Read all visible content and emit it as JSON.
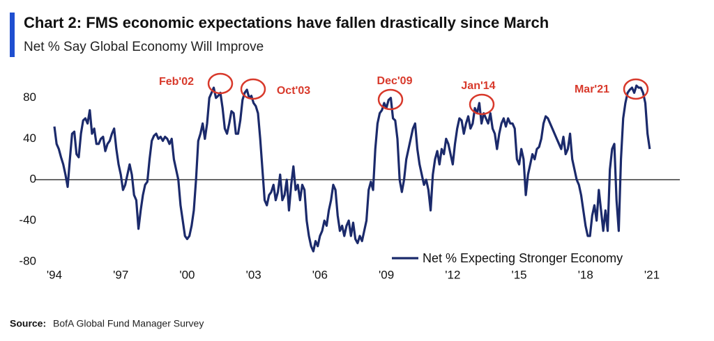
{
  "chart_data": {
    "type": "line",
    "title": "Chart 2: FMS economic expectations have fallen drastically since March",
    "subtitle": "Net % Say Global Economy Will Improve",
    "source_label": "Source:",
    "source": "BofA Global Fund Manager Survey",
    "annotations": [
      "Feb'02",
      "Oct'03",
      "Dec'09",
      "Jan'14",
      "Mar'21"
    ],
    "annotation_color": "#d8392b",
    "legend": "lower right",
    "grid": false,
    "xlim": [
      1994,
      2021
    ],
    "xticks": [
      {
        "value": 1994,
        "label": "'94"
      },
      {
        "value": 1997,
        "label": "'97"
      },
      {
        "value": 2000,
        "label": "'00"
      },
      {
        "value": 2003,
        "label": "'03"
      },
      {
        "value": 2006,
        "label": "'06"
      },
      {
        "value": 2009,
        "label": "'09"
      },
      {
        "value": 2012,
        "label": "'12"
      },
      {
        "value": 2015,
        "label": "'15"
      },
      {
        "value": 2018,
        "label": "'18"
      },
      {
        "value": 2021,
        "label": "'21"
      }
    ],
    "ylim": [
      -90,
      100
    ],
    "yticks": [
      -80,
      -40,
      0,
      40,
      80
    ],
    "x": [
      1994,
      1994.1,
      1994.2,
      1994.3,
      1994.4,
      1994.5,
      1994.6,
      1994.7,
      1994.8,
      1994.9,
      1995,
      1995.1,
      1995.2,
      1995.3,
      1995.4,
      1995.5,
      1995.6,
      1995.7,
      1995.8,
      1995.9,
      1996,
      1996.1,
      1996.2,
      1996.3,
      1996.4,
      1996.5,
      1996.6,
      1996.7,
      1996.8,
      1996.9,
      1997,
      1997.1,
      1997.2,
      1997.3,
      1997.4,
      1997.5,
      1997.6,
      1997.7,
      1997.8,
      1997.9,
      1998,
      1998.1,
      1998.2,
      1998.3,
      1998.4,
      1998.5,
      1998.6,
      1998.7,
      1998.8,
      1998.9,
      1999,
      1999.1,
      1999.2,
      1999.3,
      1999.4,
      1999.5,
      1999.6,
      1999.7,
      1999.8,
      1999.9,
      2000,
      2000.1,
      2000.2,
      2000.3,
      2000.4,
      2000.5,
      2000.6,
      2000.7,
      2000.8,
      2000.9,
      2001,
      2001.1,
      2001.2,
      2001.3,
      2001.4,
      2001.5,
      2001.6,
      2001.7,
      2001.8,
      2001.9,
      2002,
      2002.1,
      2002.2,
      2002.3,
      2002.4,
      2002.5,
      2002.6,
      2002.7,
      2002.8,
      2002.9,
      2003,
      2003.1,
      2003.2,
      2003.3,
      2003.4,
      2003.5,
      2003.6,
      2003.7,
      2003.8,
      2003.9,
      2004,
      2004.1,
      2004.2,
      2004.3,
      2004.4,
      2004.5,
      2004.6,
      2004.7,
      2004.8,
      2004.9,
      2005,
      2005.1,
      2005.2,
      2005.3,
      2005.4,
      2005.5,
      2005.6,
      2005.7,
      2005.8,
      2005.9,
      2006,
      2006.1,
      2006.2,
      2006.3,
      2006.4,
      2006.5,
      2006.6,
      2006.7,
      2006.8,
      2006.9,
      2007,
      2007.1,
      2007.2,
      2007.3,
      2007.4,
      2007.5,
      2007.6,
      2007.7,
      2007.8,
      2007.9,
      2008,
      2008.1,
      2008.2,
      2008.3,
      2008.4,
      2008.5,
      2008.6,
      2008.7,
      2008.8,
      2008.9,
      2009,
      2009.1,
      2009.2,
      2009.3,
      2009.4,
      2009.5,
      2009.6,
      2009.7,
      2009.8,
      2009.9,
      2010,
      2010.1,
      2010.2,
      2010.3,
      2010.4,
      2010.5,
      2010.6,
      2010.7,
      2010.8,
      2010.9,
      2011,
      2011.1,
      2011.2,
      2011.3,
      2011.4,
      2011.5,
      2011.6,
      2011.7,
      2011.8,
      2011.9,
      2012,
      2012.1,
      2012.2,
      2012.3,
      2012.4,
      2012.5,
      2012.6,
      2012.7,
      2012.8,
      2012.9,
      2013,
      2013.1,
      2013.2,
      2013.3,
      2013.4,
      2013.5,
      2013.6,
      2013.7,
      2013.8,
      2013.9,
      2014,
      2014.1,
      2014.2,
      2014.3,
      2014.4,
      2014.5,
      2014.6,
      2014.7,
      2014.8,
      2014.9,
      2015,
      2015.1,
      2015.2,
      2015.3,
      2015.4,
      2015.5,
      2015.6,
      2015.7,
      2015.8,
      2015.9,
      2016,
      2016.1,
      2016.2,
      2016.3,
      2016.4,
      2016.5,
      2016.6,
      2016.7,
      2016.8,
      2016.9,
      2017,
      2017.1,
      2017.2,
      2017.3,
      2017.4,
      2017.5,
      2017.6,
      2017.7,
      2017.8,
      2017.9,
      2018,
      2018.1,
      2018.2,
      2018.3,
      2018.4,
      2018.5,
      2018.6,
      2018.7,
      2018.8,
      2018.9,
      2019,
      2019.1,
      2019.2,
      2019.3,
      2019.4,
      2019.5,
      2019.6,
      2019.7,
      2019.8,
      2019.9,
      2020,
      2020.1,
      2020.2,
      2020.3,
      2020.4,
      2020.5,
      2020.6,
      2020.7,
      2020.8,
      2020.9
    ],
    "series": [
      {
        "name": "Net % Expecting Stronger Economy",
        "color": "#1b2a6b",
        "values": [
          52,
          35,
          30,
          22,
          15,
          5,
          -7,
          20,
          45,
          47,
          25,
          22,
          45,
          58,
          60,
          55,
          68,
          45,
          50,
          35,
          35,
          40,
          42,
          28,
          35,
          38,
          45,
          50,
          30,
          15,
          5,
          -10,
          -5,
          5,
          15,
          5,
          -15,
          -20,
          -48,
          -30,
          -15,
          -5,
          -2,
          20,
          38,
          43,
          45,
          40,
          42,
          38,
          42,
          40,
          35,
          40,
          20,
          10,
          0,
          -25,
          -40,
          -55,
          -58,
          -55,
          -45,
          -30,
          0,
          38,
          45,
          55,
          40,
          55,
          80,
          85,
          90,
          80,
          82,
          85,
          70,
          50,
          45,
          55,
          67,
          65,
          45,
          45,
          58,
          78,
          85,
          88,
          80,
          82,
          75,
          72,
          65,
          40,
          10,
          -20,
          -25,
          -15,
          -12,
          -5,
          -20,
          -12,
          5,
          -20,
          -15,
          0,
          -30,
          -5,
          13,
          -10,
          -5,
          -20,
          -5,
          -10,
          -40,
          -55,
          -65,
          -70,
          -60,
          -65,
          -55,
          -50,
          -40,
          -45,
          -30,
          -20,
          -5,
          -10,
          -35,
          -50,
          -45,
          -55,
          -45,
          -40,
          -55,
          -42,
          -58,
          -62,
          -55,
          -60,
          -50,
          -40,
          -10,
          -2,
          -10,
          30,
          55,
          65,
          68,
          75,
          70,
          78,
          80,
          60,
          58,
          40,
          0,
          -12,
          0,
          20,
          30,
          40,
          50,
          55,
          30,
          15,
          5,
          -5,
          0,
          -10,
          -30,
          5,
          20,
          28,
          15,
          30,
          25,
          40,
          35,
          25,
          15,
          35,
          50,
          60,
          58,
          45,
          55,
          62,
          50,
          55,
          70,
          65,
          75,
          55,
          65,
          60,
          55,
          65,
          50,
          45,
          30,
          45,
          55,
          60,
          52,
          60,
          55,
          55,
          50,
          20,
          15,
          30,
          20,
          -15,
          5,
          15,
          25,
          20,
          30,
          32,
          40,
          55,
          62,
          60,
          55,
          50,
          45,
          40,
          35,
          30,
          42,
          25,
          30,
          45,
          20,
          10,
          0,
          -5,
          -15,
          -30,
          -45,
          -55,
          -55,
          -35,
          -25,
          -40,
          -10,
          -30,
          -50,
          -30,
          -50,
          10,
          30,
          35,
          -20,
          -50,
          20,
          60,
          75,
          85,
          88,
          90,
          85,
          92,
          90,
          90,
          85,
          75,
          45,
          30
        ]
      }
    ]
  }
}
